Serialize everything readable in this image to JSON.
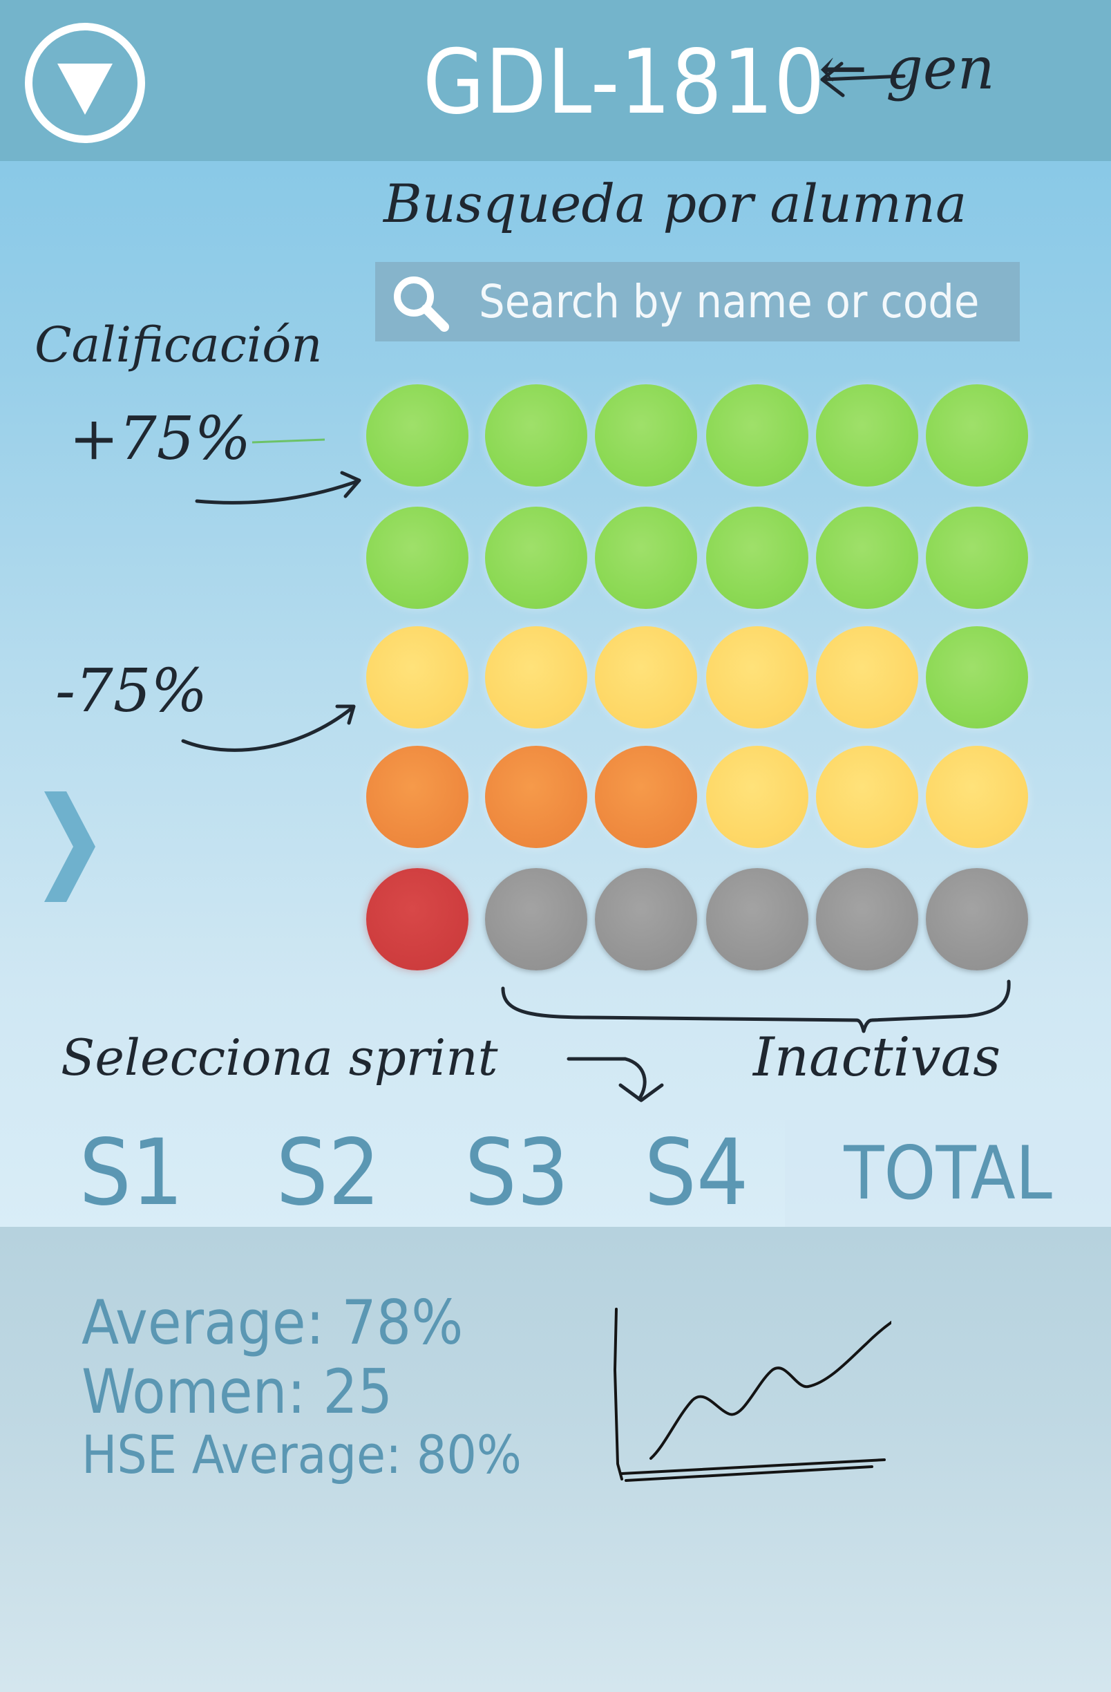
{
  "header": {
    "title": "GDL-1810",
    "annotation": "← gen"
  },
  "notes": {
    "search_label": "Busqueda por alumna",
    "grade_label": "Calificación",
    "above": "+75%",
    "below": "-75%",
    "select_sprint": "Selecciona sprint",
    "inactive": "Inactivas"
  },
  "search": {
    "placeholder": "Search by name or code"
  },
  "student_grid": {
    "rows": [
      [
        "green",
        "green",
        "green",
        "green",
        "green",
        "green"
      ],
      [
        "green",
        "green",
        "green",
        "green",
        "green",
        "green"
      ],
      [
        "yellow",
        "yellow",
        "yellow",
        "yellow",
        "yellow",
        "green"
      ],
      [
        "orange",
        "orange",
        "orange",
        "yellow",
        "yellow",
        "yellow"
      ],
      [
        "red",
        "grey",
        "grey",
        "grey",
        "grey",
        "grey"
      ]
    ],
    "colors": {
      "green": "#8cd954",
      "yellow": "#fed867",
      "orange": "#ef8a3f",
      "red": "#cf3e3f",
      "grey": "#959595"
    }
  },
  "sprints": {
    "items": [
      "S1",
      "S2",
      "S3",
      "S4",
      "TOTAL"
    ],
    "selected": "TOTAL"
  },
  "stats": {
    "average": "Average: 78%",
    "women": "Women: 25",
    "hse_average": "HSE Average: 80%"
  },
  "theme": {
    "header": "#74b4cb",
    "accent_text": "#5b97b3"
  },
  "icons": {
    "menu": "triangle-down-circle-icon",
    "search": "magnifier-icon",
    "next": "chevron-right-icon"
  }
}
